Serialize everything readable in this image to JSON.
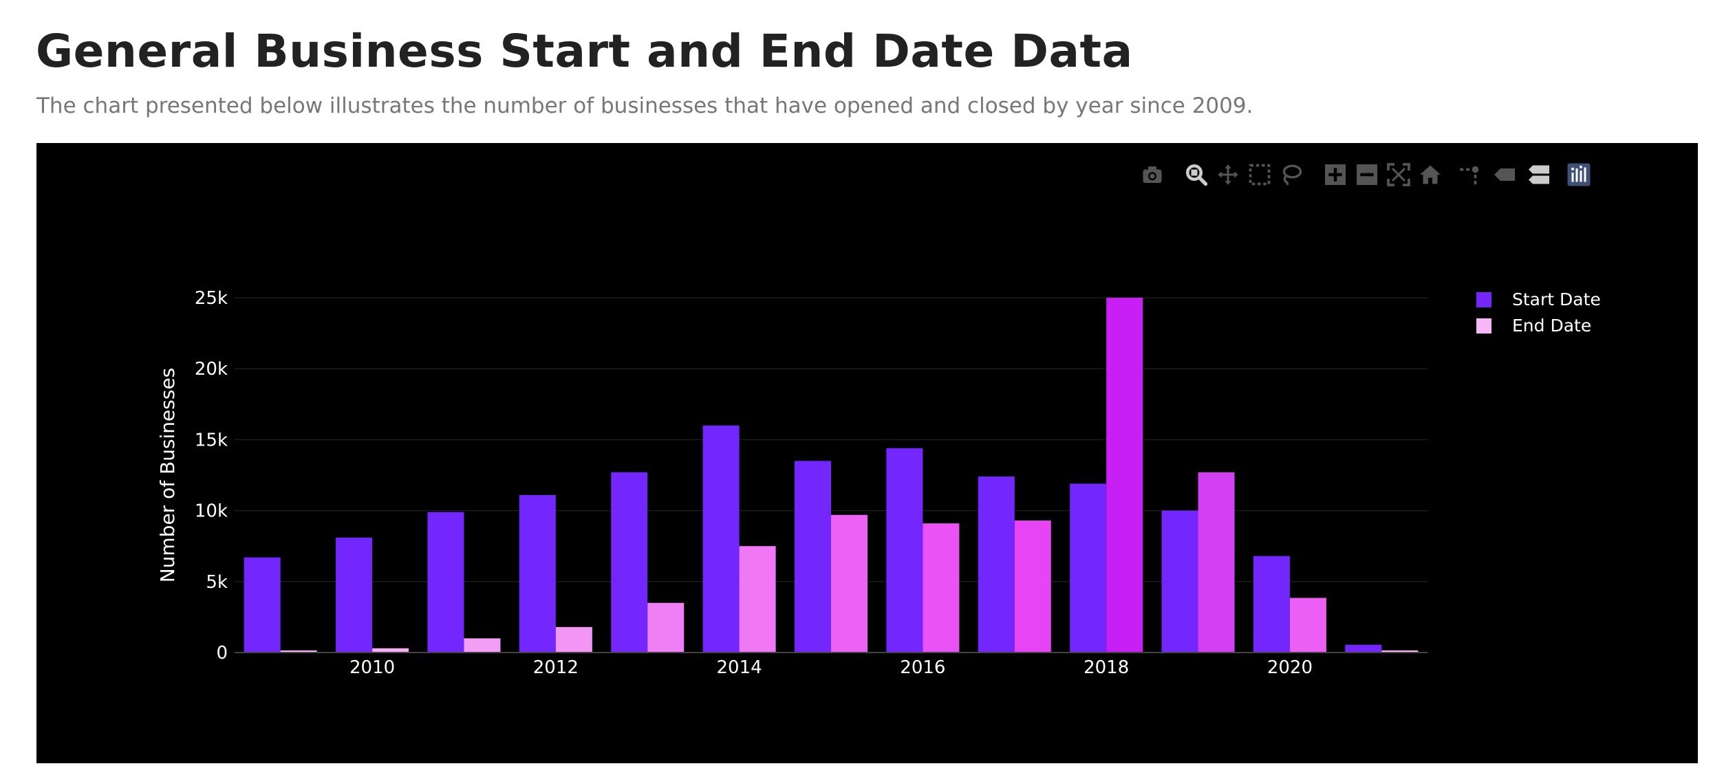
{
  "header": {
    "title": "General Business Start and End Date Data",
    "subtitle": "The chart presented below illustrates the number of businesses that have opened and closed by year since 2009."
  },
  "modebar": {
    "buttons": [
      {
        "name": "camera-icon",
        "title": "Download plot as a png"
      },
      {
        "name": "zoom-icon",
        "title": "Zoom"
      },
      {
        "name": "pan-icon",
        "title": "Pan"
      },
      {
        "name": "box-select-icon",
        "title": "Box Select"
      },
      {
        "name": "lasso-select-icon",
        "title": "Lasso Select"
      },
      {
        "name": "zoom-in-icon",
        "title": "Zoom in"
      },
      {
        "name": "zoom-out-icon",
        "title": "Zoom out"
      },
      {
        "name": "autoscale-icon",
        "title": "Autoscale"
      },
      {
        "name": "reset-axes-icon",
        "title": "Reset axes"
      },
      {
        "name": "spike-lines-icon",
        "title": "Toggle Spike Lines"
      },
      {
        "name": "hover-closest-icon",
        "title": "Show closest data on hover"
      },
      {
        "name": "hover-compare-icon",
        "title": "Compare data on hover"
      },
      {
        "name": "plotly-logo-icon",
        "title": "Produced with Plotly"
      }
    ]
  },
  "chart_data": {
    "type": "bar",
    "barmode": "group",
    "background": "#000000",
    "title": "",
    "xlabel": "",
    "ylabel": "Number of Businesses",
    "x": [
      2009,
      2010,
      2011,
      2012,
      2013,
      2014,
      2015,
      2016,
      2017,
      2018,
      2019,
      2020,
      2021
    ],
    "xticks": [
      2010,
      2012,
      2014,
      2016,
      2018,
      2020
    ],
    "ylim": [
      0,
      25000
    ],
    "yticks": [
      0,
      5000,
      10000,
      15000,
      20000,
      25000
    ],
    "ytick_labels": [
      "0",
      "5k",
      "10k",
      "15k",
      "20k",
      "25k"
    ],
    "grid": true,
    "legend_position": "top-right",
    "series": [
      {
        "name": "Start Date",
        "color": "#7327fd",
        "values": [
          6700,
          8100,
          9900,
          11100,
          12700,
          16000,
          13500,
          14400,
          12400,
          11900,
          10000,
          6800,
          550
        ]
      },
      {
        "name": "End Date",
        "color_scale": [
          "#f7b6f6",
          "#c81ff4"
        ],
        "colors": [
          "#f7b6f6",
          "#f5adf5",
          "#f39ef5",
          "#f295f5",
          "#f07ff5",
          "#f178f5",
          "#ed62f5",
          "#eb52f5",
          "#e744f5",
          "#c81ff4",
          "#d33ff3",
          "#eb5ff5",
          "#f7b6f6"
        ],
        "values": [
          150,
          300,
          1000,
          1800,
          3500,
          7500,
          9700,
          9100,
          9300,
          25000,
          12700,
          3850,
          150
        ]
      }
    ]
  }
}
